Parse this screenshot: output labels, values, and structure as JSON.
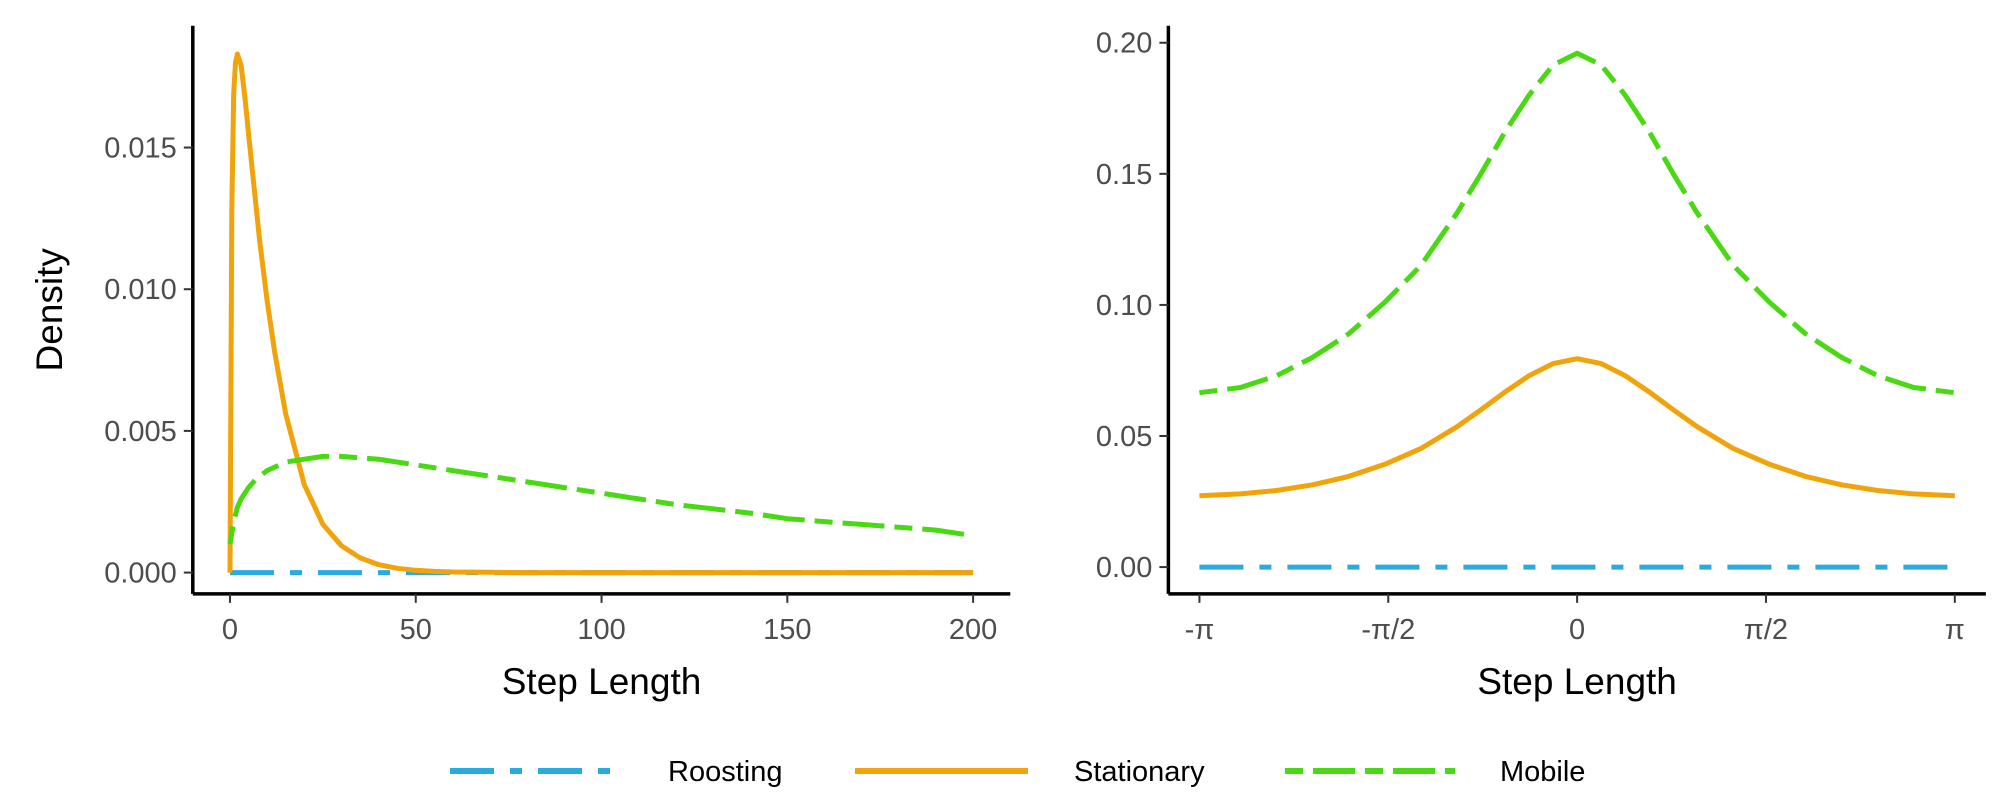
{
  "colors": {
    "roosting": "#29ABE2",
    "stationary": "#F0A30A",
    "mobile": "#49D913",
    "axis": "#000000",
    "tick_text": "#4d4d4d"
  },
  "chart_data": [
    {
      "type": "line",
      "xlabel": "Step Length",
      "ylabel": "Density",
      "xlim": [
        -10,
        210
      ],
      "ylim": [
        -0.00075,
        0.0193
      ],
      "xticks": [
        0,
        50,
        100,
        150,
        200
      ],
      "xtick_labels": [
        "0",
        "50",
        "100",
        "150",
        "200"
      ],
      "yticks": [
        0,
        0.005,
        0.01,
        0.015
      ],
      "ytick_labels": [
        "0.000",
        "0.005",
        "0.010",
        "0.015"
      ],
      "grid": false,
      "series": [
        {
          "name": "Roosting",
          "x": [
            0,
            200
          ],
          "y": [
            0,
            0
          ]
        },
        {
          "name": "Stationary",
          "x": [
            0,
            0.5,
            1,
            1.5,
            2,
            3,
            4,
            5,
            6,
            8,
            10,
            12,
            15,
            20,
            25,
            30,
            35,
            40,
            45,
            50,
            55,
            60,
            70,
            80,
            100,
            120,
            150,
            200
          ],
          "y": [
            0,
            0.0128,
            0.0169,
            0.018,
            0.0183,
            0.0179,
            0.0168,
            0.0155,
            0.0142,
            0.0117,
            0.0096,
            0.0078,
            0.0056,
            0.0031,
            0.0017,
            0.00095,
            0.00052,
            0.00028,
            0.00015,
            8e-05,
            4e-05,
            2e-05,
            1e-05,
            0,
            0,
            0,
            0,
            0
          ]
        },
        {
          "name": "Mobile",
          "x": [
            0,
            1,
            2,
            3,
            5,
            7,
            10,
            15,
            20,
            25,
            30,
            40,
            50,
            60,
            70,
            80,
            90,
            100,
            110,
            120,
            130,
            140,
            150,
            160,
            170,
            180,
            190,
            200
          ],
          "y": [
            0.001,
            0.0018,
            0.0023,
            0.0026,
            0.003,
            0.0033,
            0.0036,
            0.0039,
            0.004,
            0.0041,
            0.0041,
            0.004,
            0.0038,
            0.0036,
            0.0034,
            0.0032,
            0.003,
            0.0028,
            0.0026,
            0.0024,
            0.00225,
            0.0021,
            0.0019,
            0.0018,
            0.0017,
            0.0016,
            0.0015,
            0.0013
          ]
        }
      ]
    },
    {
      "type": "line",
      "xlabel": "Step Length",
      "ylabel": "",
      "xlim": [
        -3.4,
        3.4
      ],
      "ylim": [
        -0.0102,
        0.2065
      ],
      "xticks": [
        -3.14159,
        -1.5708,
        0,
        1.5708,
        3.14159
      ],
      "xtick_labels": [
        "-π",
        "-π/2",
        "0",
        "π/2",
        "π"
      ],
      "yticks": [
        0,
        0.05,
        0.1,
        0.15,
        0.2
      ],
      "ytick_labels": [
        "0.00",
        "0.05",
        "0.10",
        "0.15",
        "0.20"
      ],
      "grid": false,
      "series": [
        {
          "name": "Roosting",
          "x": [
            -3.14159,
            3.14159
          ],
          "y": [
            0,
            0
          ]
        },
        {
          "name": "Stationary",
          "x": [
            -3.14159,
            -2.8,
            -2.5,
            -2.2,
            -1.9,
            -1.6,
            -1.3,
            -1.0,
            -0.8,
            -0.6,
            -0.4,
            -0.2,
            0,
            0.2,
            0.4,
            0.6,
            0.8,
            1.0,
            1.3,
            1.6,
            1.9,
            2.2,
            2.5,
            2.8,
            3.14159
          ],
          "y": [
            0.0272,
            0.0279,
            0.0292,
            0.0314,
            0.0346,
            0.0392,
            0.0452,
            0.0535,
            0.06,
            0.0668,
            0.073,
            0.0776,
            0.0795,
            0.0776,
            0.073,
            0.0668,
            0.06,
            0.0535,
            0.0452,
            0.0392,
            0.0346,
            0.0314,
            0.0292,
            0.0279,
            0.0272
          ]
        },
        {
          "name": "Mobile",
          "x": [
            -3.14159,
            -2.8,
            -2.5,
            -2.2,
            -1.9,
            -1.6,
            -1.3,
            -1.0,
            -0.8,
            -0.6,
            -0.4,
            -0.2,
            0,
            0.2,
            0.4,
            0.6,
            0.8,
            1.0,
            1.3,
            1.6,
            1.9,
            2.2,
            2.5,
            2.8,
            3.14159
          ],
          "y": [
            0.0665,
            0.0685,
            0.073,
            0.08,
            0.089,
            0.101,
            0.115,
            0.135,
            0.15,
            0.166,
            0.18,
            0.1915,
            0.196,
            0.1915,
            0.18,
            0.166,
            0.15,
            0.135,
            0.115,
            0.101,
            0.089,
            0.08,
            0.073,
            0.0685,
            0.0665
          ]
        }
      ]
    }
  ],
  "legend": {
    "placement": "bottom",
    "items": [
      {
        "label": "Roosting",
        "key": "roosting"
      },
      {
        "label": "Stationary",
        "key": "stationary"
      },
      {
        "label": "Mobile",
        "key": "mobile"
      }
    ]
  }
}
